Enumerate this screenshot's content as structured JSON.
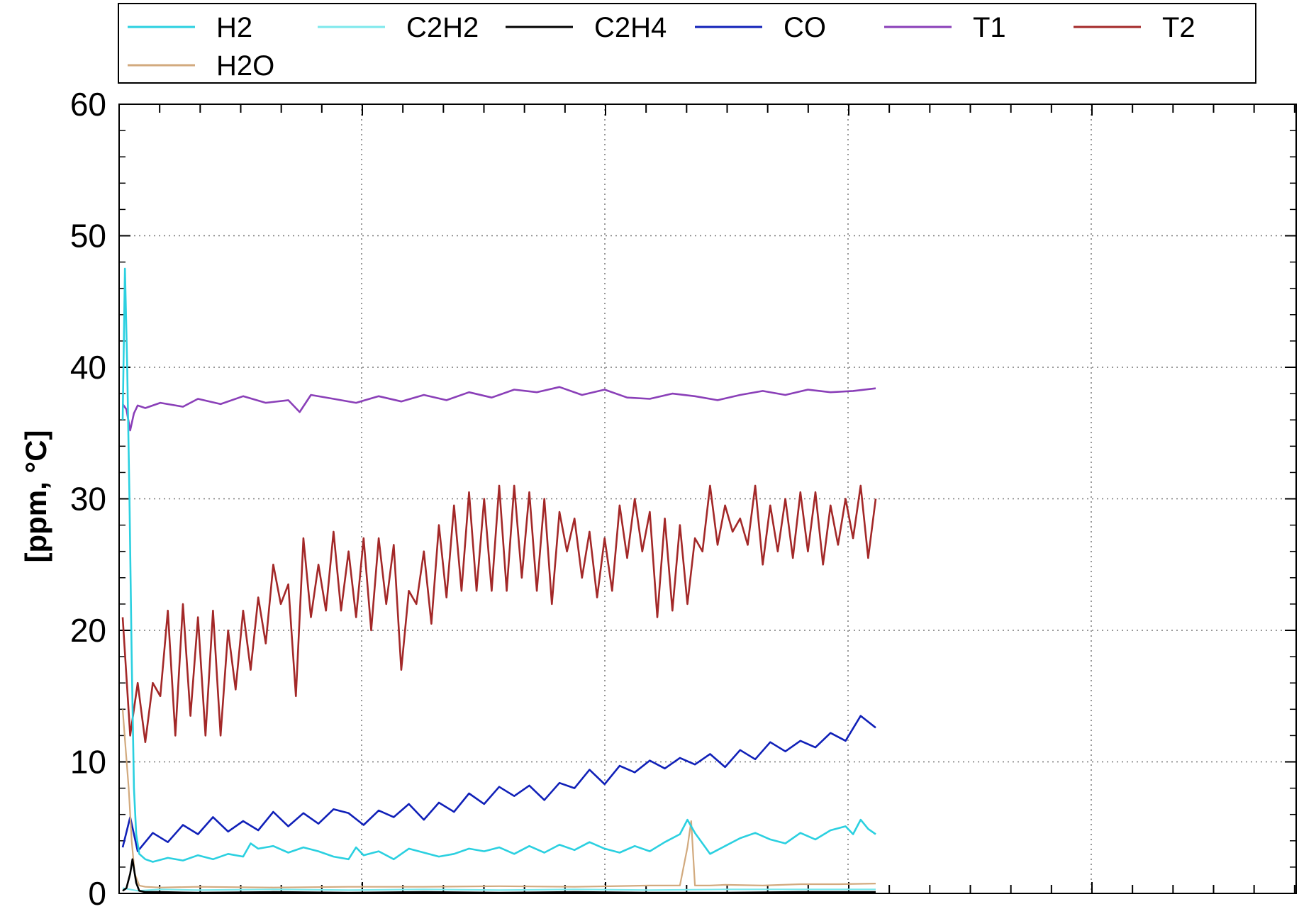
{
  "chart_data": {
    "type": "line",
    "title": "",
    "xlabel": "",
    "ylabel": "[ppm, °C]",
    "ylim": [
      0,
      60
    ],
    "yticks": [
      "0",
      "10",
      "20",
      "30",
      "40",
      "50",
      "60"
    ],
    "xlim": [
      0,
      100
    ],
    "grid": true,
    "legend_position": "top",
    "series": [
      {
        "name": "H2",
        "color": "#2bd0e0",
        "x": [
          0,
          0.3,
          0.6,
          0.9,
          1.2,
          1.5,
          1.8,
          2.2,
          3,
          4,
          6,
          8,
          10,
          12,
          14,
          16,
          17,
          18,
          20,
          22,
          24,
          26,
          28,
          30,
          31,
          32,
          34,
          36,
          38,
          40,
          42,
          44,
          46,
          48,
          50,
          52,
          54,
          56,
          58,
          60,
          62,
          64,
          66,
          68,
          70,
          72,
          74,
          75,
          76,
          78,
          80,
          82,
          84,
          86,
          88,
          90,
          92,
          94,
          96,
          97,
          98,
          99,
          100
        ],
        "y": [
          36,
          47.5,
          40,
          30,
          18,
          8,
          4.5,
          3,
          2.6,
          2.4,
          2.7,
          2.5,
          2.9,
          2.6,
          3,
          2.8,
          3.8,
          3.4,
          3.6,
          3.1,
          3.5,
          3.2,
          2.8,
          2.6,
          3.5,
          2.9,
          3.2,
          2.6,
          3.4,
          3.1,
          2.8,
          3,
          3.4,
          3.2,
          3.5,
          3,
          3.6,
          3.1,
          3.7,
          3.3,
          3.9,
          3.4,
          3.1,
          3.6,
          3.2,
          3.9,
          4.5,
          5.6,
          4.6,
          3,
          3.6,
          4.2,
          4.6,
          4.1,
          3.8,
          4.6,
          4.1,
          4.8,
          5.1,
          4.5,
          5.6,
          4.9,
          4.5
        ]
      },
      {
        "name": "C2H2",
        "color": "#7de8ec",
        "x": [
          0,
          1,
          2,
          5,
          10,
          20,
          30,
          40,
          50,
          60,
          70,
          80,
          90,
          100
        ],
        "y": [
          0.4,
          0.3,
          0.2,
          0.3,
          0.25,
          0.3,
          0.25,
          0.3,
          0.25,
          0.3,
          0.25,
          0.3,
          0.3,
          0.3
        ]
      },
      {
        "name": "C2H4",
        "color": "#000000",
        "x": [
          0,
          0.5,
          1,
          1.3,
          1.8,
          2.2,
          3,
          5,
          10,
          20,
          30,
          40,
          50,
          60,
          70,
          80,
          90,
          100
        ],
        "y": [
          0.2,
          0.4,
          1.5,
          2.6,
          0.8,
          0.2,
          0.1,
          0.1,
          0.05,
          0.1,
          0.05,
          0.1,
          0.05,
          0.1,
          0.05,
          0.05,
          0.1,
          0.1
        ]
      },
      {
        "name": "CO",
        "color": "#1020b8",
        "x": [
          0,
          1,
          2,
          4,
          6,
          8,
          10,
          12,
          14,
          16,
          18,
          20,
          22,
          24,
          26,
          28,
          30,
          32,
          34,
          36,
          38,
          40,
          42,
          44,
          46,
          48,
          50,
          52,
          54,
          56,
          58,
          60,
          62,
          64,
          66,
          68,
          70,
          72,
          74,
          76,
          78,
          80,
          82,
          84,
          86,
          88,
          90,
          92,
          94,
          96,
          98,
          100
        ],
        "y": [
          3.5,
          5.8,
          3.2,
          4.6,
          3.9,
          5.2,
          4.5,
          5.8,
          4.7,
          5.5,
          4.8,
          6.2,
          5.1,
          6.1,
          5.3,
          6.4,
          6.1,
          5.2,
          6.3,
          5.8,
          6.8,
          5.6,
          6.9,
          6.2,
          7.6,
          6.8,
          8.1,
          7.4,
          8.2,
          7.1,
          8.4,
          8,
          9.4,
          8.3,
          9.7,
          9.2,
          10.1,
          9.5,
          10.3,
          9.8,
          10.6,
          9.6,
          10.9,
          10.2,
          11.5,
          10.8,
          11.6,
          11.1,
          12.2,
          11.6,
          13.5,
          12.6
        ]
      },
      {
        "name": "T1",
        "color": "#8a3fb8",
        "x": [
          0,
          0.5,
          1,
          1.5,
          2,
          3,
          5,
          8,
          10,
          13,
          16,
          19,
          22,
          23.5,
          25,
          28,
          31,
          34,
          37,
          40,
          43,
          46,
          49,
          52,
          55,
          58,
          61,
          64,
          67,
          70,
          73,
          76,
          79,
          82,
          85,
          88,
          91,
          94,
          97,
          100
        ],
        "y": [
          37.2,
          36.8,
          35.2,
          36.5,
          37.1,
          36.9,
          37.3,
          37,
          37.6,
          37.2,
          37.8,
          37.3,
          37.5,
          36.6,
          37.9,
          37.6,
          37.3,
          37.8,
          37.4,
          37.9,
          37.5,
          38.1,
          37.7,
          38.3,
          38.1,
          38.5,
          37.9,
          38.3,
          37.7,
          37.6,
          38,
          37.8,
          37.5,
          37.9,
          38.2,
          37.9,
          38.3,
          38.1,
          38.2,
          38.4
        ]
      },
      {
        "name": "T2",
        "color": "#a32828",
        "x": [
          0,
          1,
          2,
          3,
          4,
          5,
          6,
          7,
          8,
          9,
          10,
          11,
          12,
          13,
          14,
          15,
          16,
          17,
          18,
          19,
          20,
          21,
          22,
          23,
          24,
          25,
          26,
          27,
          28,
          29,
          30,
          31,
          32,
          33,
          34,
          35,
          36,
          37,
          38,
          39,
          40,
          41,
          42,
          43,
          44,
          45,
          46,
          47,
          48,
          49,
          50,
          51,
          52,
          53,
          54,
          55,
          56,
          57,
          58,
          59,
          60,
          61,
          62,
          63,
          64,
          65,
          66,
          67,
          68,
          69,
          70,
          71,
          72,
          73,
          74,
          75,
          76,
          77,
          78,
          79,
          80,
          81,
          82,
          83,
          84,
          85,
          86,
          87,
          88,
          89,
          90,
          91,
          92,
          93,
          94,
          95,
          96,
          97,
          98,
          99,
          100
        ],
        "y": [
          21,
          12,
          16,
          11.5,
          16,
          15,
          21.5,
          12,
          22,
          13.5,
          21,
          12,
          21.5,
          12,
          20,
          15.5,
          21.5,
          17,
          22.5,
          19,
          25,
          22,
          23.5,
          15,
          27,
          21,
          25,
          21.5,
          27.5,
          21.5,
          26,
          21,
          27,
          20,
          27,
          22,
          26.5,
          17,
          23,
          22,
          26,
          20.5,
          28,
          22.5,
          29.5,
          23,
          30.5,
          23,
          30,
          23,
          31,
          23,
          31,
          24,
          30.5,
          23,
          30,
          22,
          29,
          26,
          28.5,
          24,
          27.5,
          22.5,
          27,
          23,
          29.5,
          25.5,
          30,
          26,
          29,
          21,
          28.5,
          21.5,
          28,
          22,
          27,
          26,
          31,
          26.5,
          29.5,
          27.5,
          28.5,
          26.5,
          31,
          25,
          29.5,
          26,
          30,
          25.5,
          30.5,
          26,
          30.5,
          25,
          29.5,
          26.5,
          30,
          27,
          31,
          25.5,
          30
        ]
      },
      {
        "name": "H2O",
        "color": "#d2aa7e",
        "x": [
          0,
          0.4,
          0.8,
          1.2,
          1.6,
          2.2,
          3,
          5,
          10,
          20,
          30,
          40,
          50,
          60,
          70,
          74,
          75,
          75.5,
          76,
          78,
          80,
          85,
          90,
          95,
          100
        ],
        "y": [
          14,
          11,
          8,
          4,
          1.5,
          0.6,
          0.5,
          0.45,
          0.5,
          0.45,
          0.5,
          0.5,
          0.55,
          0.5,
          0.6,
          0.6,
          3.5,
          5.5,
          0.6,
          0.6,
          0.65,
          0.6,
          0.7,
          0.7,
          0.75
        ]
      }
    ]
  }
}
